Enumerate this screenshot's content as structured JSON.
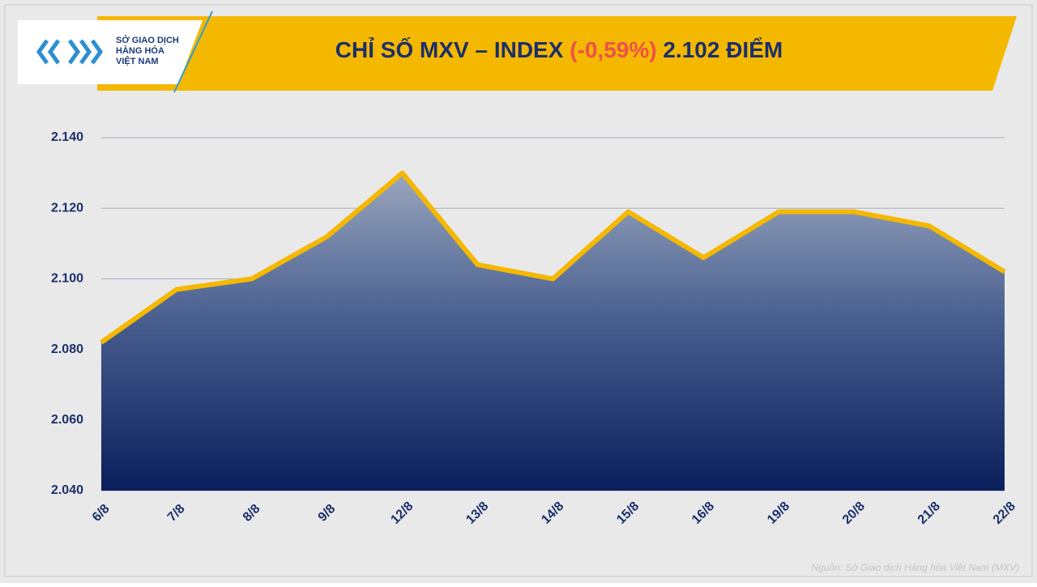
{
  "chart_data": {
    "type": "area",
    "title": {
      "main": "CHỈ SỐ MXV – INDEX",
      "change": "(-0,59%)",
      "value": "2.102 ĐIỂM"
    },
    "logo": [
      "SỞ GIAO DỊCH",
      "HÀNG HÓA",
      "VIỆT NAM"
    ],
    "source": "Nguồn: Sở Giao dịch Hàng hóa Việt Nam (MXV)",
    "categories": [
      "6/8",
      "7/8",
      "8/8",
      "9/8",
      "12/8",
      "13/8",
      "14/8",
      "15/8",
      "16/8",
      "19/8",
      "20/8",
      "21/8",
      "22/8"
    ],
    "values": [
      2082,
      2097,
      2100,
      2112,
      2130,
      2104,
      2100,
      2119,
      2106,
      2119,
      2119,
      2115,
      2102
    ],
    "color": "#f5b800",
    "change_color": "#f0504a",
    "ylim": [
      2040,
      2140
    ],
    "yticks": [
      {
        "value": 2040,
        "label": "2.040"
      },
      {
        "value": 2060,
        "label": "2.060"
      },
      {
        "value": 2080,
        "label": "2.080"
      },
      {
        "value": 2100,
        "label": "2.100"
      },
      {
        "value": 2120,
        "label": "2.120"
      },
      {
        "value": 2140,
        "label": "2.140"
      }
    ],
    "grid": true
  }
}
